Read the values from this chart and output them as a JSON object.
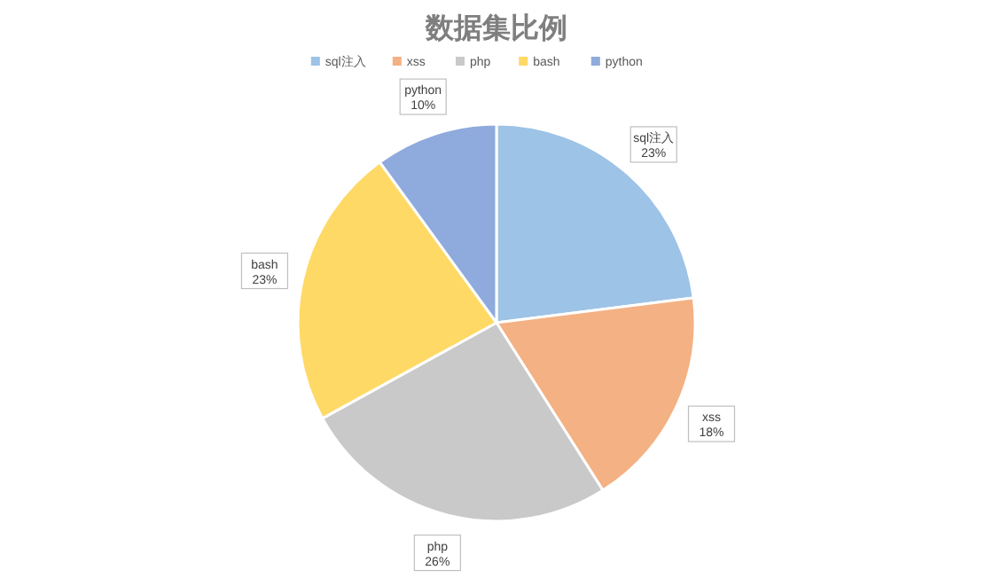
{
  "chart_data": {
    "type": "pie",
    "title": "数据集比例",
    "legend": "top",
    "categories": [
      "sql注入",
      "xss",
      "php",
      "bash",
      "python"
    ],
    "values": [
      23,
      18,
      26,
      23,
      10
    ],
    "colors": [
      "#9dc3e6",
      "#f4b183",
      "#c9c9c9",
      "#ffd966",
      "#8faadc"
    ],
    "value_labels": [
      "23%",
      "18%",
      "26%",
      "23%",
      "10%"
    ]
  }
}
